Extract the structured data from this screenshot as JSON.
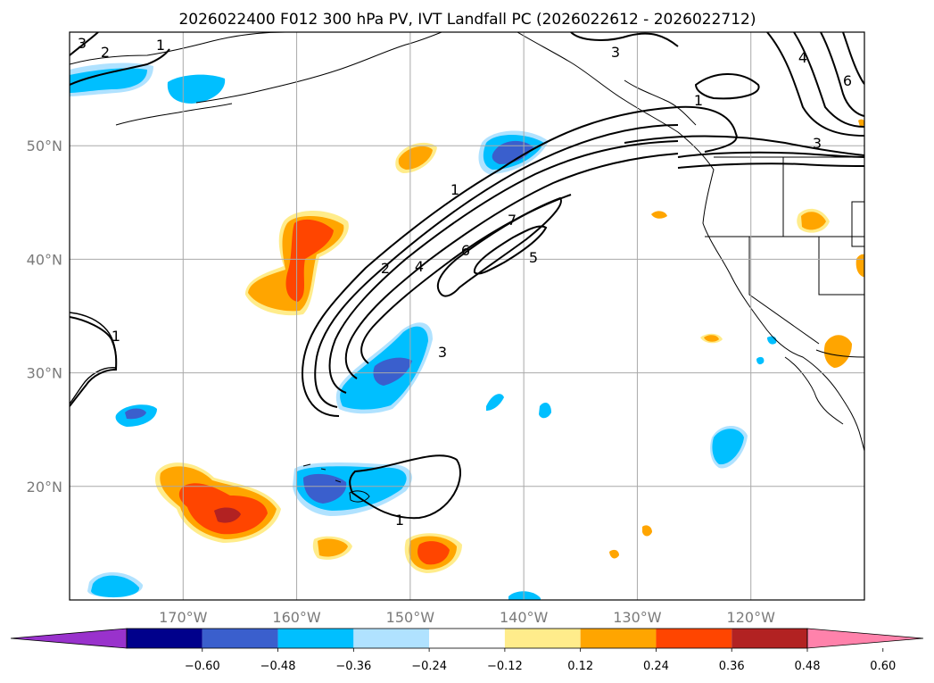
{
  "title": "2026022400 F012 300 hPa PV, IVT Landfall PC (2026022612 - 2026022712)",
  "map": {
    "lon_range": [
      -180,
      -110
    ],
    "lat_range": [
      10,
      60
    ],
    "lon_ticks": [
      {
        "value": -170,
        "label": "170°W"
      },
      {
        "value": -160,
        "label": "160°W"
      },
      {
        "value": -150,
        "label": "150°W"
      },
      {
        "value": -140,
        "label": "140°W"
      },
      {
        "value": -130,
        "label": "130°W"
      },
      {
        "value": -120,
        "label": "120°W"
      }
    ],
    "lat_ticks": [
      {
        "value": 50,
        "label": "50°N"
      },
      {
        "value": 40,
        "label": "40°N"
      },
      {
        "value": 30,
        "label": "30°N"
      },
      {
        "value": 20,
        "label": "20°N"
      }
    ],
    "grid": true,
    "contour_labels": [
      "3",
      "2",
      "1",
      "3",
      "4",
      "6",
      "1",
      "3",
      "1",
      "2",
      "4",
      "6",
      "7",
      "5",
      "3",
      "1",
      "1"
    ]
  },
  "colorbar": {
    "extend": "both",
    "boundaries": [
      -0.6,
      -0.48,
      -0.36,
      -0.24,
      -0.12,
      0.12,
      0.24,
      0.36,
      0.48,
      0.6
    ],
    "tick_labels": [
      "−0.60",
      "−0.48",
      "−0.36",
      "−0.24",
      "−0.12",
      "0.12",
      "0.24",
      "0.36",
      "0.48",
      "0.60"
    ],
    "colors": [
      "#9932cc",
      "#00008b",
      "#3a5fcd",
      "#00bfff",
      "#b0e2ff",
      "#ffffff",
      "#ffec8b",
      "#ffa500",
      "#ff4500",
      "#b22222",
      "#ff82ab"
    ]
  }
}
